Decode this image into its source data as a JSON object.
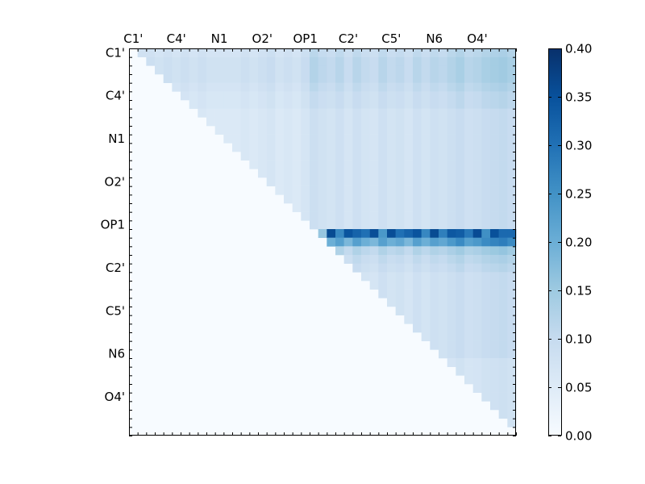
{
  "chart_data": {
    "type": "heatmap",
    "title": "",
    "xlabel": "",
    "ylabel": "",
    "grid": false,
    "x_tick_labels": [
      "C1'",
      "C4'",
      "N1",
      "O2'",
      "OP1",
      "C2'",
      "C5'",
      "N6",
      "O4'"
    ],
    "y_tick_labels": [
      "C1'",
      "C4'",
      "N1",
      "O2'",
      "OP1",
      "C2'",
      "C5'",
      "N6",
      "O4'"
    ],
    "colorbar": {
      "vmin": 0.0,
      "vmax": 0.4,
      "ticks": [
        "0.00",
        "0.05",
        "0.10",
        "0.15",
        "0.20",
        "0.25",
        "0.30",
        "0.35",
        "0.40"
      ],
      "colormap": [
        "#f7fbff",
        "#deebf7",
        "#c6dbef",
        "#9ecae1",
        "#6baed6",
        "#4292c6",
        "#2171b5",
        "#08519c",
        "#08306b"
      ]
    },
    "grid_size": 45,
    "mask": "upper_triangle",
    "row_base": [
      0.05,
      0.06,
      0.06,
      0.06,
      0.05,
      0.04,
      0.04,
      0.03,
      0.03,
      0.03,
      0.03,
      0.03,
      0.03,
      0.03,
      0.03,
      0.03,
      0.03,
      0.03,
      0.03,
      0.03,
      0.03,
      0.12,
      0.22,
      0.07,
      0.05,
      0.04,
      0.03,
      0.03,
      0.03,
      0.03,
      0.03,
      0.03,
      0.03,
      0.03,
      0.03,
      0.03,
      0.02,
      0.02,
      0.02,
      0.02,
      0.02,
      0.02,
      0.02,
      0.02,
      0.02
    ],
    "col_base": [
      0.02,
      0.05,
      0.05,
      0.04,
      0.05,
      0.04,
      0.05,
      0.04,
      0.05,
      0.04,
      0.04,
      0.04,
      0.04,
      0.05,
      0.04,
      0.05,
      0.06,
      0.04,
      0.05,
      0.04,
      0.06,
      0.1,
      0.08,
      0.07,
      0.09,
      0.06,
      0.09,
      0.07,
      0.06,
      0.09,
      0.07,
      0.08,
      0.06,
      0.09,
      0.07,
      0.09,
      0.08,
      0.1,
      0.12,
      0.09,
      0.1,
      0.12,
      0.13,
      0.14,
      0.12
    ]
  }
}
